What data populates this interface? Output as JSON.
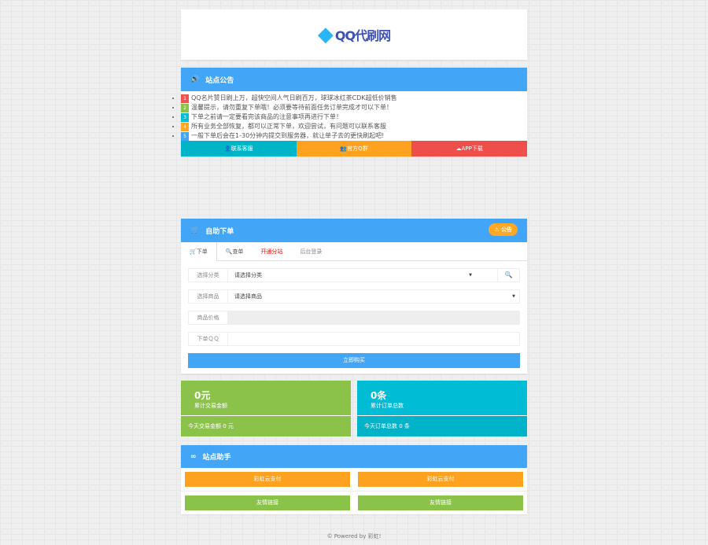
{
  "logo": {
    "text": "QQ代刷网"
  },
  "notice": {
    "title": "站点公告",
    "items": [
      {
        "n": "1",
        "text": "QQ名片赞日刷上万，超快空间人气日刷百万，球球冰红茶CDK超低价销售",
        "color": "#ef5350"
      },
      {
        "n": "2",
        "text": "温馨提示，请勿重复下单哦！必须要等待前面任务订单完成才可以下单！",
        "color": "#8bc34a"
      },
      {
        "n": "3",
        "text": "下单之前请一定要看完该商品的注意事项再进行下单！",
        "color": "#00bcd4"
      },
      {
        "n": "4",
        "text": "所有业务全部恢复，都可以正常下单，欢迎尝试，有问题可以联系客服",
        "color": "#ffa726"
      },
      {
        "n": "5",
        "text": "一般下单后会在1-30分钟内提交到服务器，就让单子去的更快刷起吧!",
        "color": "#42a5f5"
      }
    ],
    "buttons": [
      {
        "label": "联系客服",
        "color": "#00b4c8"
      },
      {
        "label": "官方Q群",
        "color": "#ffa21f"
      },
      {
        "label": "APP下载",
        "color": "#ef4f4a"
      }
    ]
  },
  "order": {
    "title": "自助下单",
    "badge": "公告",
    "tabs": [
      "下单",
      "查单",
      "开通分站",
      "后台登录"
    ],
    "fields": [
      {
        "label": "选择分类",
        "value": "请选择分类"
      },
      {
        "label": "选择商品",
        "value": "请选择商品"
      },
      {
        "label": "商品价格",
        "value": ""
      },
      {
        "label": "下单ＱＱ",
        "value": ""
      }
    ],
    "buy": "立即购买"
  },
  "stats": [
    {
      "big": "0元",
      "label": "累计交易金额",
      "foot": "今天交易金额 0 元"
    },
    {
      "big": "0条",
      "label": "累计订单总数",
      "foot": "今天订单总数 0 条"
    }
  ],
  "helper": {
    "title": "站点助手",
    "pay": [
      "彩虹云支付",
      "彩虹云支付"
    ],
    "links": [
      "友情链接",
      "友情链接"
    ]
  },
  "footer": "© Powered by 彩虹!"
}
